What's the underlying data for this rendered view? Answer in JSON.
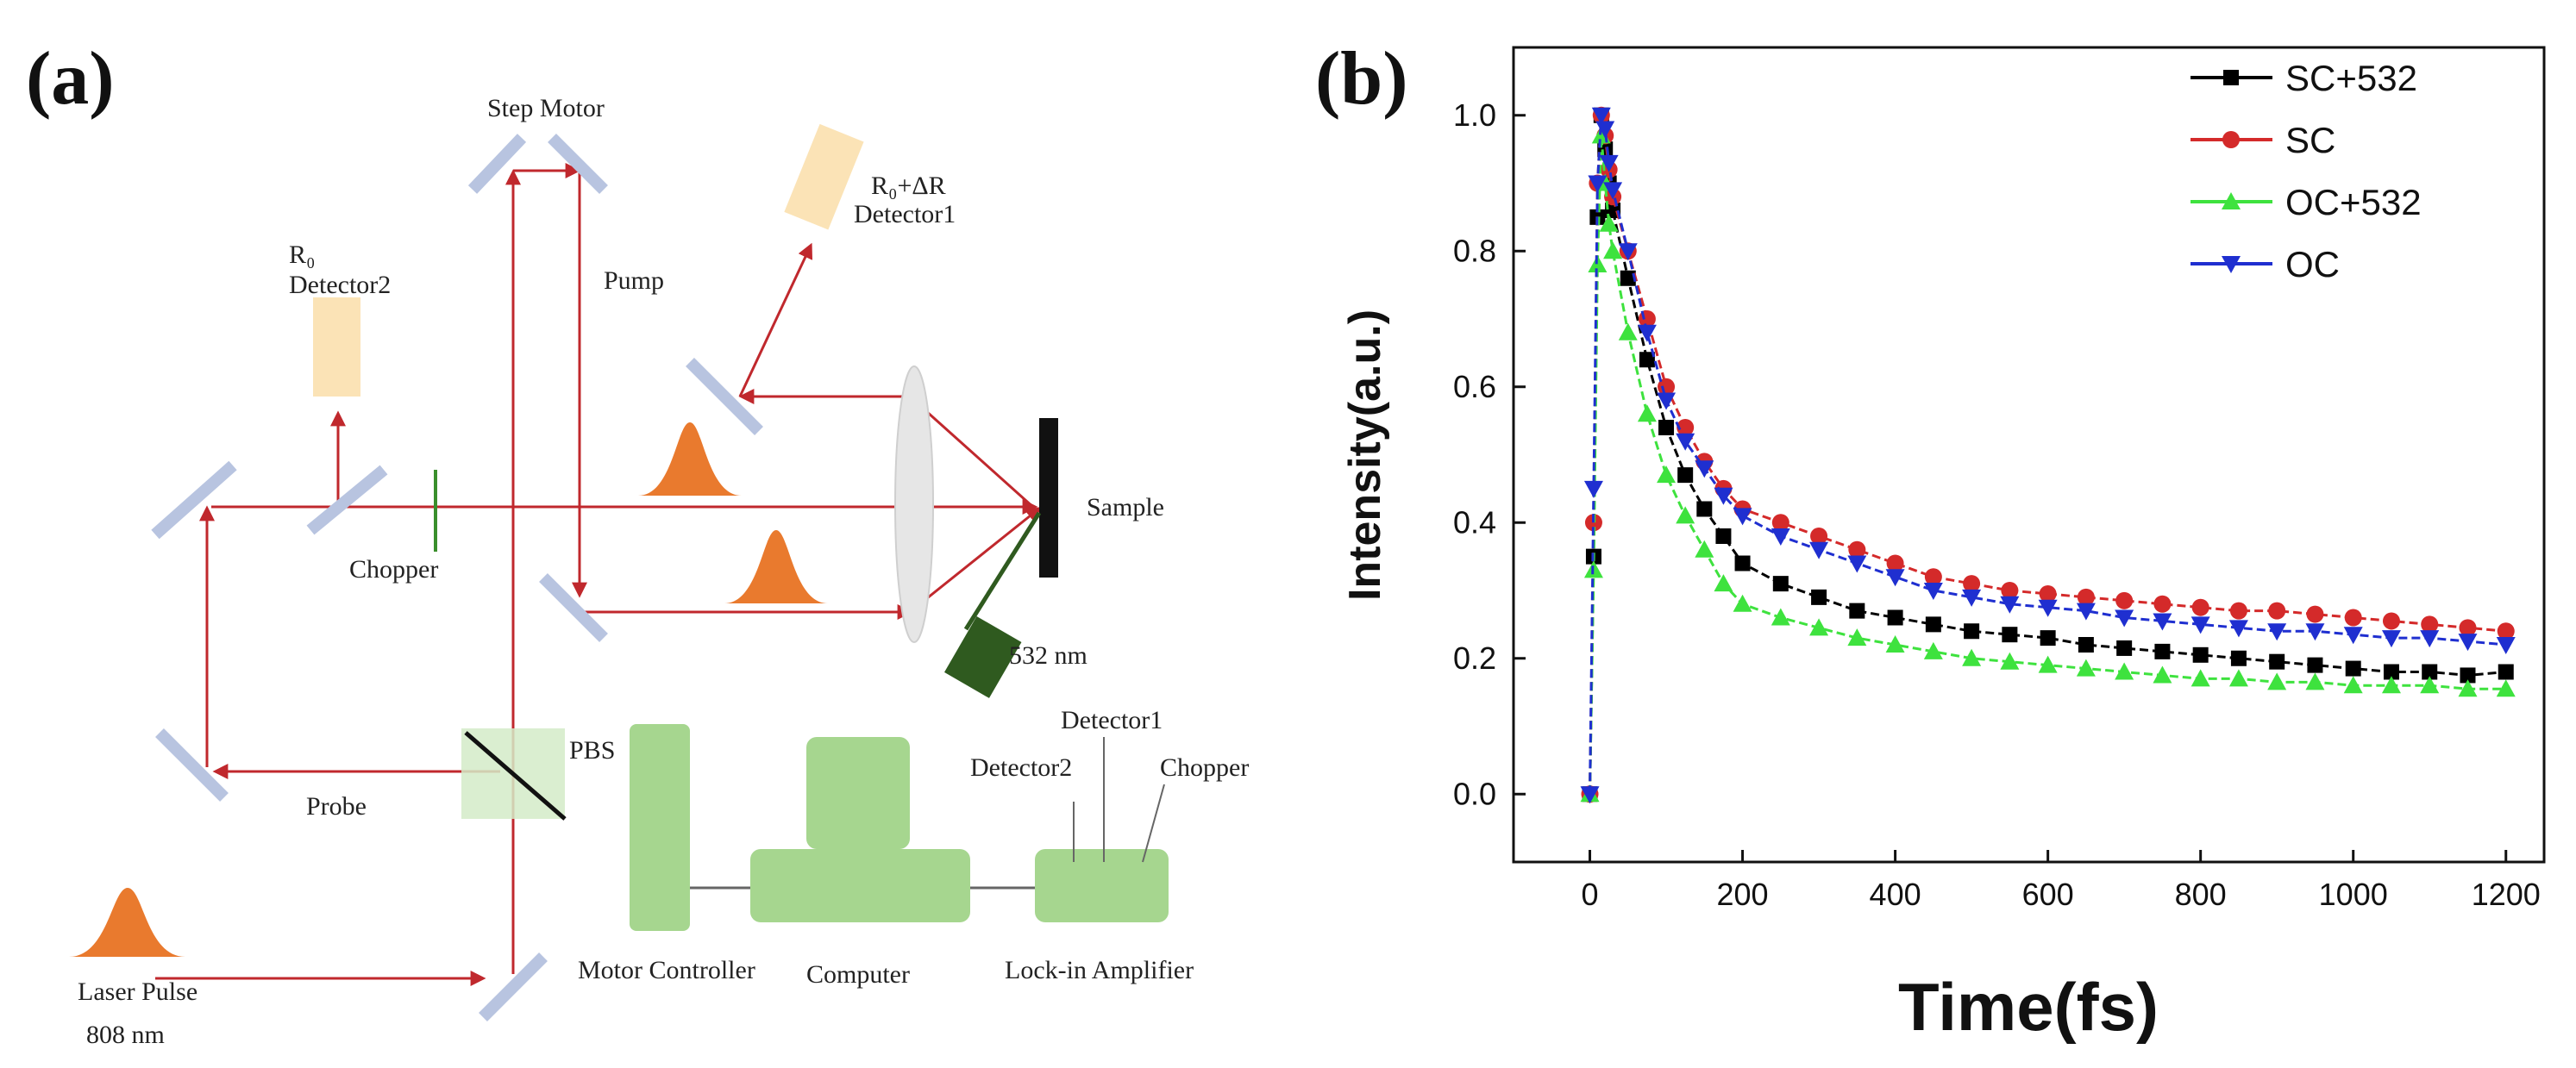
{
  "panel_a": {
    "label": "(a)",
    "labels": {
      "step_motor": "Step Motor",
      "pump": "Pump",
      "r0_detector_line1": "R₀",
      "r0_detector_line2": "Detector2",
      "r0dr_line1": "R₀+ΔR",
      "r0dr_line2": "Detector1",
      "sample": "Sample",
      "chopper": "Chopper",
      "laser_532": "532 nm",
      "pbs": "PBS",
      "probe": "Probe",
      "laser_pulse": "Laser Pulse",
      "wavelength_808": "808 nm",
      "motor_controller": "Motor Controller",
      "computer": "Computer",
      "lockin": "Lock-in Amplifier",
      "lockin_detector1": "Detector1",
      "lockin_detector2": "Detector2",
      "lockin_chopper": "Chopper"
    },
    "colors": {
      "beam": "#c0282d",
      "mirror": "#b8c4e0",
      "detector": "#fbe3b6",
      "device": "#a6d68f",
      "pulse": "#e97a2e",
      "lens": "#e6e6e6",
      "laser532": "#2f5a1f"
    }
  },
  "panel_b": {
    "label": "(b)",
    "chart_data": {
      "type": "line",
      "xlabel": "Time(fs)",
      "ylabel": "Intensity(a.u.)",
      "xlim": [
        -100,
        1250
      ],
      "ylim": [
        -0.1,
        1.1
      ],
      "xticks": [
        0,
        200,
        400,
        600,
        800,
        1000,
        1200
      ],
      "yticks": [
        0.0,
        0.2,
        0.4,
        0.6,
        0.8,
        1.0
      ],
      "legend_position": "top-right",
      "series": [
        {
          "name": "SC+532",
          "color": "#000000",
          "marker": "square",
          "x": [
            0,
            5,
            10,
            15,
            20,
            25,
            30,
            50,
            75,
            100,
            125,
            150,
            175,
            200,
            250,
            300,
            350,
            400,
            450,
            500,
            550,
            600,
            650,
            700,
            750,
            800,
            850,
            900,
            950,
            1000,
            1050,
            1100,
            1150,
            1200
          ],
          "y": [
            0.0,
            0.35,
            0.85,
            1.0,
            0.95,
            0.9,
            0.86,
            0.76,
            0.64,
            0.54,
            0.47,
            0.42,
            0.38,
            0.34,
            0.31,
            0.29,
            0.27,
            0.26,
            0.25,
            0.24,
            0.235,
            0.23,
            0.22,
            0.215,
            0.21,
            0.205,
            0.2,
            0.195,
            0.19,
            0.185,
            0.18,
            0.18,
            0.175,
            0.18
          ]
        },
        {
          "name": "SC",
          "color": "#d42a2a",
          "marker": "circle",
          "x": [
            0,
            5,
            10,
            15,
            20,
            25,
            30,
            50,
            75,
            100,
            125,
            150,
            175,
            200,
            250,
            300,
            350,
            400,
            450,
            500,
            550,
            600,
            650,
            700,
            750,
            800,
            850,
            900,
            950,
            1000,
            1050,
            1100,
            1150,
            1200
          ],
          "y": [
            0.0,
            0.4,
            0.9,
            1.0,
            0.97,
            0.92,
            0.88,
            0.8,
            0.7,
            0.6,
            0.54,
            0.49,
            0.45,
            0.42,
            0.4,
            0.38,
            0.36,
            0.34,
            0.32,
            0.31,
            0.3,
            0.295,
            0.29,
            0.285,
            0.28,
            0.275,
            0.27,
            0.27,
            0.265,
            0.26,
            0.255,
            0.25,
            0.245,
            0.24
          ]
        },
        {
          "name": "OC+532",
          "color": "#3ee23e",
          "marker": "triangle-up",
          "x": [
            0,
            5,
            10,
            15,
            20,
            25,
            30,
            50,
            75,
            100,
            125,
            150,
            175,
            200,
            250,
            300,
            350,
            400,
            450,
            500,
            550,
            600,
            650,
            700,
            750,
            800,
            850,
            900,
            950,
            1000,
            1050,
            1100,
            1150,
            1200
          ],
          "y": [
            0.0,
            0.33,
            0.78,
            0.97,
            0.9,
            0.84,
            0.8,
            0.68,
            0.56,
            0.47,
            0.41,
            0.36,
            0.31,
            0.28,
            0.26,
            0.245,
            0.23,
            0.22,
            0.21,
            0.2,
            0.195,
            0.19,
            0.185,
            0.18,
            0.175,
            0.17,
            0.17,
            0.165,
            0.165,
            0.16,
            0.16,
            0.16,
            0.155,
            0.155
          ]
        },
        {
          "name": "OC",
          "color": "#1f2fd0",
          "marker": "triangle-down",
          "x": [
            0,
            5,
            10,
            15,
            20,
            25,
            30,
            50,
            75,
            100,
            125,
            150,
            175,
            200,
            250,
            300,
            350,
            400,
            450,
            500,
            550,
            600,
            650,
            700,
            750,
            800,
            850,
            900,
            950,
            1000,
            1050,
            1100,
            1150,
            1200
          ],
          "y": [
            0.0,
            0.45,
            0.9,
            1.0,
            0.98,
            0.93,
            0.89,
            0.8,
            0.68,
            0.58,
            0.52,
            0.48,
            0.44,
            0.41,
            0.38,
            0.36,
            0.34,
            0.32,
            0.3,
            0.29,
            0.28,
            0.275,
            0.27,
            0.26,
            0.255,
            0.25,
            0.245,
            0.24,
            0.24,
            0.235,
            0.23,
            0.23,
            0.225,
            0.22
          ]
        }
      ]
    }
  }
}
